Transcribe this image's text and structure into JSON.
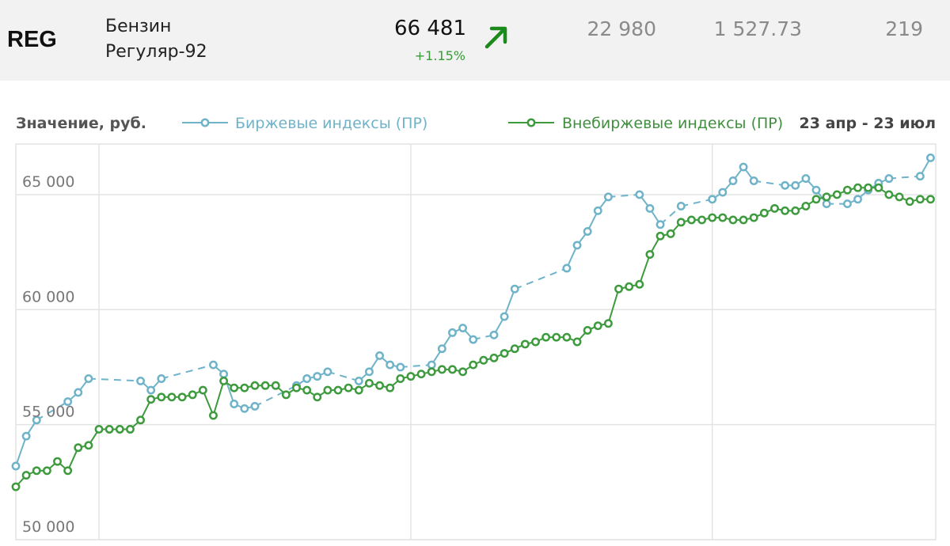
{
  "ticker": {
    "symbol": "REG",
    "name_line1": "Бензин",
    "name_line2": "Регуляр-92",
    "price": "66 481",
    "change": "+1.15%",
    "direction": "up",
    "volume": "22 980",
    "amount": "1 527.73",
    "count": "219"
  },
  "colors": {
    "exchange": "#6fb3c9",
    "otc": "#3d9a3d",
    "grid": "#e4e4e4",
    "up": "#1a8a1a"
  },
  "chart_data": {
    "type": "line",
    "ylabel": "Значение, руб.",
    "period": "23 апр - 23 июл",
    "ylim": [
      50000,
      67200
    ],
    "xlim": [
      0,
      88.5
    ],
    "yticks": [
      50000,
      55000,
      60000,
      65000
    ],
    "ytick_labels": [
      "50 000",
      "55 000",
      "60 000",
      "65 000"
    ],
    "x_gridlines": [
      8,
      38,
      67
    ],
    "grid": true,
    "legend_position": "top",
    "series": [
      {
        "name": "Биржевые индексы (ПР)",
        "color": "#6fb3c9",
        "points": [
          [
            0,
            53200
          ],
          [
            1,
            54500
          ],
          [
            2,
            55200
          ],
          [
            5,
            56000
          ],
          [
            6,
            56400
          ],
          [
            7,
            57000
          ],
          [
            12,
            56900
          ],
          [
            13,
            56500
          ],
          [
            14,
            57000
          ],
          [
            19,
            57600
          ],
          [
            20,
            57200
          ],
          [
            21,
            55900
          ],
          [
            22,
            55700
          ],
          [
            23,
            55800
          ],
          [
            27,
            56700
          ],
          [
            28,
            57000
          ],
          [
            29,
            57100
          ],
          [
            30,
            57300
          ],
          [
            33,
            56900
          ],
          [
            34,
            57300
          ],
          [
            35,
            58000
          ],
          [
            36,
            57600
          ],
          [
            37,
            57500
          ],
          [
            40,
            57600
          ],
          [
            41,
            58300
          ],
          [
            42,
            59000
          ],
          [
            43,
            59200
          ],
          [
            44,
            58700
          ],
          [
            46,
            58900
          ],
          [
            47,
            59700
          ],
          [
            48,
            60900
          ],
          [
            53,
            61800
          ],
          [
            54,
            62800
          ],
          [
            55,
            63400
          ],
          [
            56,
            64300
          ],
          [
            57,
            64900
          ],
          [
            60,
            65000
          ],
          [
            61,
            64400
          ],
          [
            62,
            63700
          ],
          [
            64,
            64500
          ],
          [
            67,
            64800
          ],
          [
            68,
            65100
          ],
          [
            69,
            65600
          ],
          [
            70,
            66200
          ],
          [
            71,
            65600
          ],
          [
            74,
            65400
          ],
          [
            75,
            65400
          ],
          [
            76,
            65700
          ],
          [
            77,
            65200
          ],
          [
            78,
            64600
          ],
          [
            80,
            64600
          ],
          [
            81,
            64800
          ],
          [
            82,
            65200
          ],
          [
            83,
            65500
          ],
          [
            84,
            65700
          ],
          [
            87,
            65800
          ],
          [
            88,
            66600
          ]
        ]
      },
      {
        "name": "Внебиржевые индексы (ПР)",
        "color": "#3d9a3d",
        "points": [
          [
            0,
            52300
          ],
          [
            1,
            52800
          ],
          [
            2,
            53000
          ],
          [
            3,
            53000
          ],
          [
            4,
            53400
          ],
          [
            5,
            53000
          ],
          [
            6,
            54000
          ],
          [
            7,
            54100
          ],
          [
            8,
            54800
          ],
          [
            9,
            54800
          ],
          [
            10,
            54800
          ],
          [
            11,
            54800
          ],
          [
            12,
            55200
          ],
          [
            13,
            56100
          ],
          [
            14,
            56200
          ],
          [
            15,
            56200
          ],
          [
            16,
            56200
          ],
          [
            17,
            56300
          ],
          [
            18,
            56500
          ],
          [
            19,
            55400
          ],
          [
            20,
            56900
          ],
          [
            21,
            56600
          ],
          [
            22,
            56600
          ],
          [
            23,
            56700
          ],
          [
            24,
            56700
          ],
          [
            25,
            56700
          ],
          [
            26,
            56300
          ],
          [
            27,
            56600
          ],
          [
            28,
            56500
          ],
          [
            29,
            56200
          ],
          [
            30,
            56500
          ],
          [
            31,
            56500
          ],
          [
            32,
            56600
          ],
          [
            33,
            56500
          ],
          [
            34,
            56800
          ],
          [
            35,
            56700
          ],
          [
            36,
            56600
          ],
          [
            37,
            57000
          ],
          [
            38,
            57100
          ],
          [
            39,
            57200
          ],
          [
            40,
            57300
          ],
          [
            41,
            57400
          ],
          [
            42,
            57400
          ],
          [
            43,
            57300
          ],
          [
            44,
            57600
          ],
          [
            45,
            57800
          ],
          [
            46,
            57900
          ],
          [
            47,
            58100
          ],
          [
            48,
            58300
          ],
          [
            49,
            58500
          ],
          [
            50,
            58600
          ],
          [
            51,
            58800
          ],
          [
            52,
            58800
          ],
          [
            53,
            58800
          ],
          [
            54,
            58600
          ],
          [
            55,
            59100
          ],
          [
            56,
            59300
          ],
          [
            57,
            59400
          ],
          [
            58,
            60900
          ],
          [
            59,
            61000
          ],
          [
            60,
            61100
          ],
          [
            61,
            62400
          ],
          [
            62,
            63200
          ],
          [
            63,
            63300
          ],
          [
            64,
            63800
          ],
          [
            65,
            63900
          ],
          [
            66,
            63900
          ],
          [
            67,
            64000
          ],
          [
            68,
            64000
          ],
          [
            69,
            63900
          ],
          [
            70,
            63900
          ],
          [
            71,
            64000
          ],
          [
            72,
            64200
          ],
          [
            73,
            64400
          ],
          [
            74,
            64300
          ],
          [
            75,
            64300
          ],
          [
            76,
            64500
          ],
          [
            77,
            64800
          ],
          [
            78,
            64900
          ],
          [
            79,
            65000
          ],
          [
            80,
            65200
          ],
          [
            81,
            65300
          ],
          [
            82,
            65300
          ],
          [
            83,
            65300
          ],
          [
            84,
            65000
          ],
          [
            85,
            64900
          ],
          [
            86,
            64700
          ],
          [
            87,
            64800
          ],
          [
            88,
            64800
          ]
        ]
      }
    ]
  }
}
